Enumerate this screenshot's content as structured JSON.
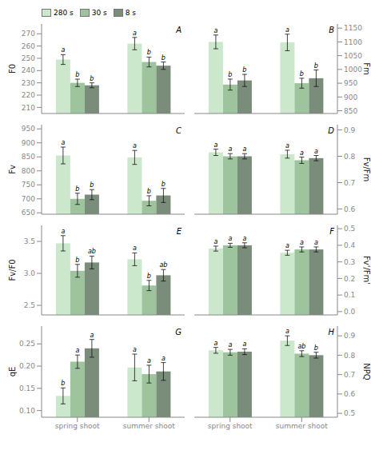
{
  "chart_data": [
    {
      "type": "bar",
      "title": "A",
      "y_label": "F0",
      "categories": [
        null,
        null
      ],
      "tick_labels": "y",
      "legend": "upper left",
      "ylim": [
        205,
        278
      ],
      "yticks": [
        210,
        220,
        230,
        240,
        250,
        260,
        270
      ],
      "series": [
        {
          "name": "280 s",
          "color": "#cce8cc",
          "values": [
            249,
            262
          ],
          "errors": [
            4,
            5
          ],
          "annotations": [
            "a",
            "a"
          ]
        },
        {
          "name": "30 s",
          "color": "#9dc49d",
          "values": [
            230,
            247
          ],
          "errors": [
            3,
            4
          ],
          "annotations": [
            "b",
            "b"
          ]
        },
        {
          "name": "8 s",
          "color": "#7a8c7a",
          "values": [
            228,
            244
          ],
          "errors": [
            2,
            3
          ],
          "annotations": [
            "b",
            "b"
          ]
        }
      ]
    },
    {
      "type": "bar",
      "title": "B",
      "y_label": "Fm",
      "categories": [
        null,
        null
      ],
      "tick_labels": "y",
      "ylim": [
        840,
        1165
      ],
      "yticks": [
        850,
        900,
        950,
        1000,
        1050,
        1100,
        1150
      ],
      "series": [
        {
          "name": "280 s",
          "color": "#cce8cc",
          "values": [
            1100,
            1098
          ],
          "errors": [
            25,
            30
          ],
          "annotations": [
            "a",
            "a"
          ]
        },
        {
          "name": "30 s",
          "color": "#9dc49d",
          "values": [
            945,
            950
          ],
          "errors": [
            20,
            18
          ],
          "annotations": [
            "b",
            "b"
          ]
        },
        {
          "name": "8 s",
          "color": "#7a8c7a",
          "values": [
            960,
            968
          ],
          "errors": [
            22,
            30
          ],
          "annotations": [
            "b",
            "b"
          ]
        }
      ]
    },
    {
      "type": "bar",
      "title": "C",
      "y_label": "Fv",
      "categories": [
        null,
        null
      ],
      "tick_labels": "y",
      "ylim": [
        645,
        965
      ],
      "yticks": [
        650,
        700,
        750,
        800,
        850,
        900,
        950
      ],
      "series": [
        {
          "name": "280 s",
          "color": "#cce8cc",
          "values": [
            855,
            848
          ],
          "errors": [
            30,
            25
          ],
          "annotations": [
            "a",
            "a"
          ]
        },
        {
          "name": "30 s",
          "color": "#9dc49d",
          "values": [
            700,
            693
          ],
          "errors": [
            20,
            18
          ],
          "annotations": [
            "b",
            "b"
          ]
        },
        {
          "name": "8 s",
          "color": "#7a8c7a",
          "values": [
            715,
            712
          ],
          "errors": [
            18,
            25
          ],
          "annotations": [
            "b",
            "b"
          ]
        }
      ]
    },
    {
      "type": "bar",
      "title": "D",
      "y_label": "Fv/Fm",
      "categories": [
        null,
        null
      ],
      "tick_labels": "y",
      "ylim": [
        0.58,
        0.92
      ],
      "yticks": [
        0.6,
        0.7,
        0.8,
        0.9
      ],
      "series": [
        {
          "name": "280 s",
          "color": "#cce8cc",
          "values": [
            0.815,
            0.808
          ],
          "errors": [
            0.012,
            0.015
          ],
          "annotations": [
            "a",
            "a"
          ]
        },
        {
          "name": "30 s",
          "color": "#9dc49d",
          "values": [
            0.8,
            0.785
          ],
          "errors": [
            0.01,
            0.012
          ],
          "annotations": [
            "a",
            "a"
          ]
        },
        {
          "name": "8 s",
          "color": "#7a8c7a",
          "values": [
            0.8,
            0.793
          ],
          "errors": [
            0.01,
            0.01
          ],
          "annotations": [
            "a",
            "a"
          ]
        }
      ]
    },
    {
      "type": "bar",
      "title": "E",
      "y_label": "Fv/F0",
      "categories": [
        null,
        null
      ],
      "tick_labels": "y",
      "ylim": [
        2.35,
        3.75
      ],
      "yticks": [
        2.5,
        {
          "value": 3.0,
          "label": "3.0"
        },
        3.5
      ],
      "series": [
        {
          "name": "280 s",
          "color": "#cce8cc",
          "values": [
            3.47,
            3.22
          ],
          "errors": [
            0.12,
            0.1
          ],
          "annotations": [
            "a",
            "a"
          ]
        },
        {
          "name": "30 s",
          "color": "#9dc49d",
          "values": [
            3.04,
            2.81
          ],
          "errors": [
            0.1,
            0.08
          ],
          "annotations": [
            "b",
            "b"
          ]
        },
        {
          "name": "8 s",
          "color": "#7a8c7a",
          "values": [
            3.17,
            2.97
          ],
          "errors": [
            0.1,
            0.09
          ],
          "annotations": [
            "ab",
            "ab"
          ]
        }
      ]
    },
    {
      "type": "bar",
      "title": "F",
      "y_label": "Fv'/Fm'",
      "categories": [
        null,
        null
      ],
      "tick_labels": "y",
      "ylim": [
        -0.02,
        0.52
      ],
      "yticks": [
        {
          "value": 0.0,
          "label": "0.0"
        },
        0.1,
        0.2,
        0.3,
        0.4,
        0.5
      ],
      "series": [
        {
          "name": "280 s",
          "color": "#cce8cc",
          "values": [
            0.38,
            0.355
          ],
          "errors": [
            0.015,
            0.015
          ],
          "annotations": [
            "a",
            "a"
          ]
        },
        {
          "name": "30 s",
          "color": "#9dc49d",
          "values": [
            0.4,
            0.375
          ],
          "errors": [
            0.012,
            0.015
          ],
          "annotations": [
            "a",
            "a"
          ]
        },
        {
          "name": "8 s",
          "color": "#7a8c7a",
          "values": [
            0.4,
            0.375
          ],
          "errors": [
            0.015,
            0.015
          ],
          "annotations": [
            "a",
            "a"
          ]
        }
      ]
    },
    {
      "type": "bar",
      "title": "G",
      "y_label": "qE",
      "categories": [
        "spring shoot",
        "summer shoot"
      ],
      "ylim": [
        0.085,
        0.29
      ],
      "yticks": [
        {
          "value": 0.1,
          "label": "0.10"
        },
        0.15,
        {
          "value": 0.2,
          "label": "0.20"
        },
        0.25
      ],
      "series": [
        {
          "name": "280 s",
          "color": "#cce8cc",
          "values": [
            0.133,
            0.197
          ],
          "errors": [
            0.018,
            0.03
          ],
          "annotations": [
            "b",
            "a"
          ]
        },
        {
          "name": "30 s",
          "color": "#9dc49d",
          "values": [
            0.21,
            0.182
          ],
          "errors": [
            0.015,
            0.02
          ],
          "annotations": [
            "a",
            "a"
          ]
        },
        {
          "name": "8 s",
          "color": "#7a8c7a",
          "values": [
            0.24,
            0.188
          ],
          "errors": [
            0.02,
            0.02
          ],
          "annotations": [
            "a",
            "a"
          ]
        }
      ]
    },
    {
      "type": "bar",
      "title": "H",
      "y_label": "NPQ",
      "categories": [
        "spring shoot",
        "summer shoot"
      ],
      "ylim": [
        0.48,
        0.95
      ],
      "yticks": [
        0.5,
        0.6,
        0.7,
        0.8,
        0.9
      ],
      "series": [
        {
          "name": "280 s",
          "color": "#cce8cc",
          "values": [
            0.825,
            0.875
          ],
          "errors": [
            0.015,
            0.025
          ],
          "annotations": [
            "a",
            "a"
          ]
        },
        {
          "name": "30 s",
          "color": "#9dc49d",
          "values": [
            0.815,
            0.808
          ],
          "errors": [
            0.015,
            0.015
          ],
          "annotations": [
            "a",
            "ab"
          ]
        },
        {
          "name": "8 s",
          "color": "#7a8c7a",
          "values": [
            0.818,
            0.8
          ],
          "errors": [
            0.015,
            0.015
          ],
          "annotations": [
            "a",
            "b"
          ]
        }
      ]
    }
  ]
}
